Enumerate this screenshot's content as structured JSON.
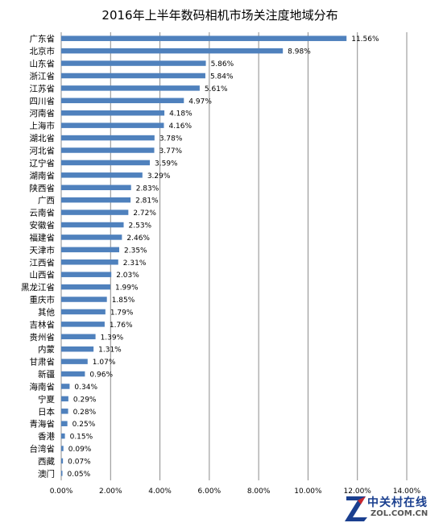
{
  "chart_data": {
    "type": "bar",
    "orientation": "horizontal",
    "title": "2016年上半年数码相机市场关注度地域分布",
    "xlabel": "",
    "ylabel": "",
    "xlim": [
      0,
      14
    ],
    "ticks": [
      "0.00%",
      "2.00%",
      "4.00%",
      "6.00%",
      "8.00%",
      "10.00%",
      "12.00%",
      "14.00%"
    ],
    "grid": true,
    "color": "#4f81bd",
    "categories": [
      "广东省",
      "北京市",
      "山东省",
      "浙江省",
      "江苏省",
      "四川省",
      "河南省",
      "上海市",
      "湖北省",
      "河北省",
      "辽宁省",
      "湖南省",
      "陕西省",
      "广西",
      "云南省",
      "安徽省",
      "福建省",
      "天津市",
      "江西省",
      "山西省",
      "黑龙江省",
      "重庆市",
      "其他",
      "吉林省",
      "贵州省",
      "内蒙",
      "甘肃省",
      "新疆",
      "海南省",
      "宁夏",
      "日本",
      "青海省",
      "香港",
      "台湾省",
      "西藏",
      "澳门"
    ],
    "values": [
      11.56,
      8.98,
      5.86,
      5.84,
      5.61,
      4.97,
      4.18,
      4.16,
      3.78,
      3.77,
      3.59,
      3.29,
      2.83,
      2.81,
      2.72,
      2.53,
      2.46,
      2.35,
      2.31,
      2.03,
      1.99,
      1.85,
      1.79,
      1.76,
      1.39,
      1.31,
      1.07,
      0.96,
      0.34,
      0.29,
      0.28,
      0.25,
      0.15,
      0.09,
      0.07,
      0.05
    ],
    "data_labels": [
      "11.56%",
      "8.98%",
      "5.86%",
      "5.84%",
      "5.61%",
      "4.97%",
      "4.18%",
      "4.16%",
      "3.78%",
      "3.77%",
      "3.59%",
      "3.29%",
      "2.83%",
      "2.81%",
      "2.72%",
      "2.53%",
      "2.46%",
      "2.35%",
      "2.31%",
      "2.03%",
      "1.99%",
      "1.85%",
      "1.79%",
      "1.76%",
      "1.39%",
      "1.31%",
      "1.07%",
      "0.96%",
      "0.34%",
      "0.29%",
      "0.28%",
      "0.25%",
      "0.15%",
      "0.09%",
      "0.07%",
      "0.05%"
    ]
  },
  "watermark": {
    "cn": "中关村在线",
    "en": "ZOL.COM.CN"
  }
}
